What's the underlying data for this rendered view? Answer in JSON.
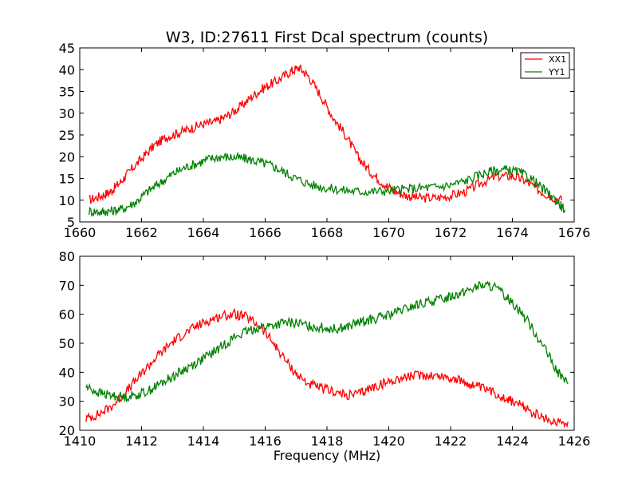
{
  "chart_data": [
    {
      "type": "line",
      "title": "W3, ID:27611 First Dcal spectrum (counts)",
      "xlabel": "",
      "ylabel": "",
      "xlim": [
        1660,
        1676
      ],
      "ylim": [
        5,
        45
      ],
      "xticks": [
        "1660",
        "1662",
        "1664",
        "1666",
        "1668",
        "1670",
        "1672",
        "1674",
        "1676"
      ],
      "yticks": [
        "5",
        "10",
        "15",
        "20",
        "25",
        "30",
        "35",
        "40",
        "45"
      ],
      "grid": false,
      "legend": "top-right",
      "series": [
        {
          "name": "XX1",
          "color": "#ff0000",
          "x": [
            1660.3,
            1660.7,
            1661.0,
            1661.3,
            1661.6,
            1662.0,
            1662.4,
            1662.8,
            1663.2,
            1663.6,
            1664.0,
            1664.4,
            1664.8,
            1665.2,
            1665.6,
            1666.0,
            1666.4,
            1666.8,
            1667.1,
            1667.4,
            1667.8,
            1668.2,
            1668.6,
            1669.0,
            1669.4,
            1669.8,
            1670.2,
            1670.6,
            1671.0,
            1671.5,
            1672.0,
            1672.5,
            1673.0,
            1673.5,
            1674.0,
            1674.4,
            1674.8,
            1675.2,
            1675.6
          ],
          "y": [
            10.0,
            11.0,
            12.0,
            14.0,
            16.5,
            19.5,
            22.5,
            24.5,
            25.5,
            26.5,
            27.5,
            28.0,
            29.5,
            31.5,
            34.0,
            36.0,
            37.5,
            39.5,
            40.5,
            38.5,
            34.0,
            29.0,
            25.0,
            20.0,
            16.5,
            14.0,
            12.0,
            11.0,
            10.5,
            10.5,
            11.0,
            12.0,
            14.0,
            15.5,
            15.5,
            14.5,
            12.5,
            11.0,
            10.0
          ]
        },
        {
          "name": "YY1",
          "color": "#008000",
          "x": [
            1660.3,
            1660.7,
            1661.0,
            1661.4,
            1661.8,
            1662.2,
            1662.6,
            1663.0,
            1663.4,
            1663.8,
            1664.2,
            1664.6,
            1665.0,
            1665.4,
            1665.8,
            1666.2,
            1666.6,
            1667.0,
            1667.5,
            1668.0,
            1668.5,
            1669.0,
            1669.5,
            1670.0,
            1670.5,
            1671.0,
            1671.5,
            1672.0,
            1672.5,
            1673.0,
            1673.4,
            1673.8,
            1674.2,
            1674.6,
            1675.0,
            1675.4,
            1675.7
          ],
          "y": [
            7.5,
            7.3,
            7.5,
            8.0,
            9.5,
            12.0,
            14.0,
            16.0,
            17.5,
            18.5,
            19.5,
            20.0,
            19.8,
            19.5,
            18.8,
            18.0,
            16.5,
            15.0,
            13.5,
            12.8,
            12.3,
            12.0,
            12.0,
            12.2,
            12.5,
            12.8,
            13.0,
            13.5,
            14.5,
            16.0,
            16.8,
            17.0,
            16.5,
            15.0,
            12.5,
            10.0,
            7.8
          ]
        }
      ]
    },
    {
      "type": "line",
      "title": "",
      "xlabel": "Frequency (MHz)",
      "ylabel": "",
      "xlim": [
        1410,
        1426
      ],
      "ylim": [
        20,
        80
      ],
      "xticks": [
        "1410",
        "1412",
        "1414",
        "1416",
        "1418",
        "1420",
        "1422",
        "1424",
        "1426"
      ],
      "yticks": [
        "20",
        "30",
        "40",
        "50",
        "60",
        "70",
        "80"
      ],
      "grid": false,
      "legend": "none",
      "series": [
        {
          "name": "XX1",
          "color": "#ff0000",
          "x": [
            1410.2,
            1410.6,
            1411.0,
            1411.4,
            1411.8,
            1412.2,
            1412.6,
            1413.0,
            1413.4,
            1413.8,
            1414.2,
            1414.6,
            1415.0,
            1415.4,
            1415.8,
            1416.2,
            1416.6,
            1417.0,
            1417.4,
            1417.8,
            1418.2,
            1418.6,
            1419.0,
            1419.4,
            1419.8,
            1420.2,
            1420.6,
            1421.0,
            1421.4,
            1421.8,
            1422.2,
            1422.6,
            1423.0,
            1423.4,
            1423.8,
            1424.2,
            1424.6,
            1425.0,
            1425.4,
            1425.8
          ],
          "y": [
            24.0,
            25.5,
            28.0,
            32.0,
            37.0,
            42.0,
            46.5,
            50.5,
            53.5,
            56.0,
            58.0,
            59.5,
            60.0,
            59.0,
            56.0,
            51.0,
            45.0,
            39.5,
            36.0,
            34.5,
            33.5,
            32.0,
            32.5,
            34.5,
            36.0,
            37.5,
            38.5,
            39.0,
            39.0,
            38.5,
            37.5,
            36.0,
            34.5,
            33.0,
            31.0,
            29.0,
            26.5,
            24.0,
            23.0,
            23.0
          ]
        },
        {
          "name": "YY1",
          "color": "#008000",
          "x": [
            1410.2,
            1410.6,
            1411.0,
            1411.4,
            1411.8,
            1412.2,
            1412.6,
            1413.0,
            1413.4,
            1413.8,
            1414.2,
            1414.6,
            1415.0,
            1415.4,
            1415.8,
            1416.2,
            1416.6,
            1417.0,
            1417.4,
            1417.8,
            1418.2,
            1418.6,
            1419.0,
            1419.4,
            1419.8,
            1420.2,
            1420.6,
            1421.0,
            1421.4,
            1421.8,
            1422.2,
            1422.6,
            1423.0,
            1423.4,
            1423.8,
            1424.2,
            1424.6,
            1425.0,
            1425.4,
            1425.8
          ],
          "y": [
            35.0,
            33.0,
            32.0,
            31.5,
            32.0,
            33.5,
            36.0,
            38.5,
            41.0,
            43.5,
            46.0,
            49.0,
            52.0,
            54.0,
            55.5,
            56.0,
            57.0,
            57.0,
            56.0,
            55.5,
            55.0,
            55.5,
            57.0,
            58.0,
            59.0,
            60.5,
            62.0,
            63.5,
            64.5,
            65.5,
            67.0,
            68.5,
            70.0,
            69.5,
            66.0,
            62.0,
            56.0,
            49.0,
            41.0,
            36.0
          ]
        }
      ]
    }
  ]
}
